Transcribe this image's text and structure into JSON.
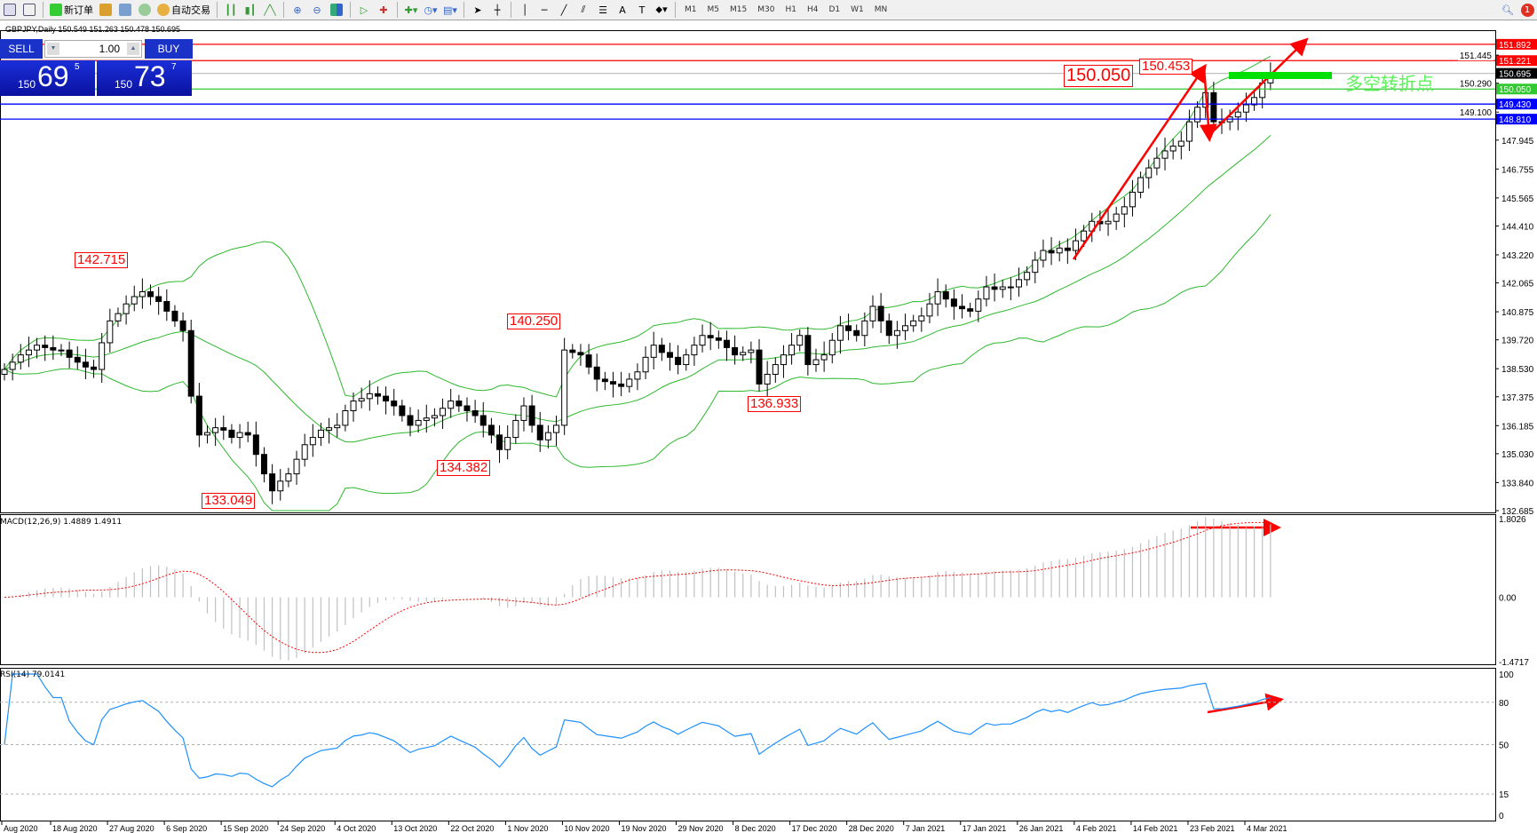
{
  "toolbar": {
    "new_order": "新订单",
    "auto_trade": "自动交易",
    "timeframes": [
      "M1",
      "M5",
      "M15",
      "M30",
      "H1",
      "H4",
      "D1",
      "W1",
      "MN"
    ],
    "notification_count": "1"
  },
  "chart": {
    "title": "GBPJPY,Daily  150.549 151.263 150.478 150.695",
    "symbol": "GBPJPY",
    "timeframe": "Daily"
  },
  "one_click": {
    "sell": "SELL",
    "buy": "BUY",
    "lot": "1.00",
    "sell_price": {
      "big": "150",
      "main": "69",
      "pip": "5"
    },
    "buy_price": {
      "big": "150",
      "main": "73",
      "pip": "7"
    }
  },
  "price_axis": {
    "ticks": [
      "132.685",
      "133.840",
      "135.030",
      "136.185",
      "137.375",
      "138.530",
      "139.720",
      "140.875",
      "142.065",
      "143.220",
      "144.410",
      "145.565",
      "146.755",
      "147.945",
      "149.100",
      "150.290",
      "151.445"
    ],
    "min": 132.685,
    "max": 152.4
  },
  "hlines": [
    {
      "price": "151.892",
      "color": "#ff0000"
    },
    {
      "price": "151.221",
      "color": "#ff0000"
    },
    {
      "price": "150.695",
      "color": "#c0c0c0",
      "label_bg": "#000000"
    },
    {
      "price": "150.050",
      "color": "#32c832",
      "label_bg": "#32c832"
    },
    {
      "price": "149.430",
      "color": "#0000ff"
    },
    {
      "price": "148.810",
      "color": "#0000ff"
    }
  ],
  "annotations": [
    "142.715",
    "133.049",
    "134.382",
    "140.250",
    "136.933",
    "150.050",
    "150.453"
  ],
  "annotation_text": "多空转折点",
  "closes": [
    138.5,
    138.8,
    139.1,
    139.3,
    139.5,
    139.4,
    139.3,
    139.3,
    139.0,
    138.8,
    138.6,
    138.5,
    139.6,
    140.5,
    140.8,
    141.2,
    141.5,
    141.7,
    141.5,
    141.3,
    140.9,
    140.5,
    140.1,
    137.4,
    135.8,
    135.9,
    136.1,
    136.0,
    135.7,
    135.9,
    135.8,
    135.0,
    134.2,
    133.5,
    133.9,
    134.2,
    134.8,
    135.4,
    135.7,
    136.0,
    136.1,
    136.2,
    136.8,
    137.2,
    137.3,
    137.5,
    137.4,
    137.2,
    137.0,
    136.6,
    136.2,
    136.4,
    136.5,
    136.6,
    136.9,
    137.2,
    137.0,
    136.8,
    136.6,
    136.2,
    135.8,
    135.2,
    135.7,
    136.4,
    137.0,
    136.2,
    135.6,
    135.9,
    136.2,
    139.3,
    139.2,
    139.1,
    138.6,
    138.1,
    138.0,
    137.9,
    137.8,
    138.1,
    138.4,
    139.0,
    139.5,
    139.2,
    139.0,
    138.7,
    139.1,
    139.5,
    139.9,
    139.8,
    139.7,
    139.4,
    139.1,
    139.2,
    139.3,
    137.9,
    138.3,
    138.7,
    139.1,
    139.5,
    139.9,
    138.7,
    138.9,
    139.1,
    139.7,
    140.3,
    140.1,
    139.9,
    140.5,
    141.1,
    140.5,
    139.9,
    140.1,
    140.3,
    140.5,
    140.7,
    141.2,
    141.7,
    141.4,
    141.1,
    141.0,
    140.9,
    141.4,
    141.9,
    141.8,
    141.9,
    141.9,
    142.2,
    142.5,
    143.0,
    143.4,
    143.3,
    143.5,
    143.4,
    143.8,
    144.2,
    144.6,
    144.5,
    144.6,
    144.9,
    145.2,
    145.8,
    146.4,
    146.8,
    147.2,
    147.5,
    147.7,
    147.9,
    148.7,
    149.3,
    149.9,
    148.7,
    148.7,
    148.9,
    149.1,
    149.4,
    149.7,
    150.3,
    150.7
  ],
  "macd": {
    "label": "MACD(12,26,9) 1.4889 1.4911",
    "ticks": [
      "1.8026",
      "0.00",
      "-1.4717"
    ],
    "max": 1.8026,
    "min": -1.4717,
    "hist_color": "#c0c0c0",
    "signal_color": "#ff0000"
  },
  "rsi": {
    "label": "RSI(14) 79.0141",
    "ticks": [
      "100",
      "80",
      "50",
      "15",
      "0"
    ],
    "levels": [
      80,
      50,
      15
    ],
    "color": "#1e90ff"
  },
  "dates": [
    "Aug 2020",
    "18 Aug 2020",
    "27 Aug 2020",
    "6 Sep 2020",
    "15 Sep 2020",
    "24 Sep 2020",
    "4 Oct 2020",
    "13 Oct 2020",
    "22 Oct 2020",
    "1 Nov 2020",
    "10 Nov 2020",
    "19 Nov 2020",
    "29 Nov 2020",
    "8 Dec 2020",
    "17 Dec 2020",
    "28 Dec 2020",
    "7 Jan 2021",
    "17 Jan 2021",
    "26 Jan 2021",
    "4 Feb 2021",
    "14 Feb 2021",
    "23 Feb 2021",
    "4 Mar 2021"
  ],
  "colors": {
    "bands": "#2eb82e",
    "arrows": "#ff0000",
    "candle": "#000000"
  }
}
